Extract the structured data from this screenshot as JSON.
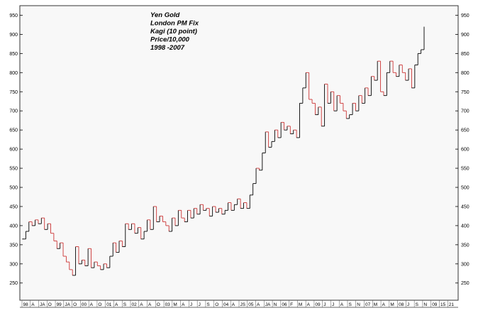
{
  "chart_data": {
    "type": "line",
    "title_lines": [
      "Yen Gold",
      "London PM Fix",
      "Kagi (10 point)",
      "Price/10,000",
      "1998 -2007"
    ],
    "y_ticks": [
      250,
      300,
      350,
      400,
      450,
      500,
      550,
      600,
      650,
      700,
      750,
      800,
      850,
      900,
      950
    ],
    "ylim": [
      205,
      975
    ],
    "x_ticks": [
      "98",
      "A",
      "JA",
      "O",
      "99",
      "JA",
      "O",
      "00",
      "A",
      "O",
      "01",
      "A",
      "S",
      "02",
      "A",
      "A",
      "O",
      "03",
      "M",
      "A",
      "J",
      "J",
      "S",
      "O",
      "04",
      "A",
      "JS",
      "05",
      "A",
      "JA",
      "N",
      "06",
      "F",
      "M",
      "A",
      "09",
      "J",
      "J",
      "A",
      "S",
      "N",
      "07",
      "M",
      "A",
      "M",
      "08",
      "J",
      "S",
      "N",
      "09",
      "15",
      "21"
    ],
    "grid": false,
    "series": [
      {
        "colors": {
          "up": "#000000",
          "down": "#cc3333"
        },
        "values": [
          365,
          385,
          410,
          400,
          415,
          405,
          420,
          390,
          405,
          380,
          360,
          340,
          355,
          320,
          305,
          285,
          270,
          345,
          300,
          310,
          295,
          340,
          290,
          305,
          295,
          285,
          300,
          290,
          320,
          355,
          330,
          360,
          345,
          405,
          390,
          405,
          380,
          395,
          365,
          385,
          415,
          390,
          450,
          410,
          425,
          410,
          400,
          385,
          420,
          400,
          440,
          420,
          410,
          440,
          420,
          445,
          430,
          455,
          440,
          445,
          425,
          450,
          435,
          445,
          430,
          440,
          460,
          440,
          455,
          470,
          445,
          460,
          445,
          480,
          510,
          550,
          545,
          590,
          645,
          605,
          620,
          650,
          630,
          670,
          650,
          660,
          640,
          650,
          630,
          720,
          760,
          800,
          730,
          720,
          690,
          710,
          660,
          770,
          720,
          750,
          700,
          740,
          720,
          700,
          680,
          690,
          720,
          700,
          740,
          720,
          760,
          740,
          790,
          780,
          830,
          750,
          740,
          800,
          830,
          800,
          790,
          820,
          800,
          780,
          810,
          760,
          820,
          850,
          860,
          920
        ]
      }
    ]
  }
}
